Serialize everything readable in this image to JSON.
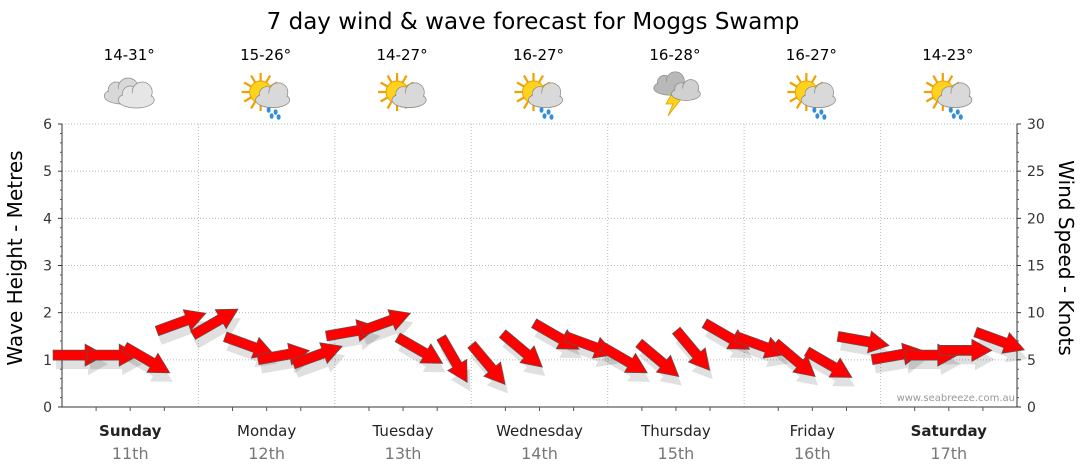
{
  "chart_data": {
    "type": "line",
    "title": "7 day wind & wave forecast for Moggs Swamp",
    "ylabel_left": "Wave Height - Metres",
    "ylabel_right": "Wind Speed - Knots",
    "ylim_left": [
      0,
      6
    ],
    "ylim_right": [
      0,
      30
    ],
    "left_ticks": [
      "0",
      "1",
      "2",
      "3",
      "4",
      "5",
      "6"
    ],
    "right_ticks": [
      "0",
      "5",
      "10",
      "15",
      "20",
      "25",
      "30"
    ],
    "grid": true,
    "days": [
      {
        "name": "Sunday",
        "date": "11th",
        "temp": "14-31°",
        "icon": "cloudy-icon",
        "bold": true
      },
      {
        "name": "Monday",
        "date": "12th",
        "temp": "15-26°",
        "icon": "sun-cloud-rain-icon",
        "bold": false
      },
      {
        "name": "Tuesday",
        "date": "13th",
        "temp": "14-27°",
        "icon": "sun-cloud-icon",
        "bold": false
      },
      {
        "name": "Wednesday",
        "date": "14th",
        "temp": "16-27°",
        "icon": "sun-cloud-rain-icon",
        "bold": false
      },
      {
        "name": "Thursday",
        "date": "15th",
        "temp": "16-28°",
        "icon": "storm-icon",
        "bold": false
      },
      {
        "name": "Friday",
        "date": "16th",
        "temp": "16-27°",
        "icon": "sun-cloud-rain-icon",
        "bold": false
      },
      {
        "name": "Saturday",
        "date": "17th",
        "temp": "14-23°",
        "icon": "sun-cloud-rain-icon",
        "bold": true
      }
    ],
    "series": [
      {
        "name": "Wind Speed",
        "units": "knots",
        "x_hours": [
          0,
          6,
          12,
          18,
          24,
          30,
          36,
          42,
          48,
          54,
          60,
          66,
          72,
          78,
          84,
          90,
          96,
          102,
          108,
          114,
          120,
          126,
          132,
          138,
          144,
          150,
          156,
          162
        ],
        "values": [
          5.5,
          5.5,
          5,
          9,
          9,
          6.5,
          5.5,
          5.5,
          8,
          9,
          6,
          5,
          4.5,
          6,
          7.5,
          6.5,
          5,
          5,
          6,
          7.5,
          6.5,
          5,
          4.5,
          7,
          5.5,
          5.5,
          6,
          7
        ],
        "direction_deg": [
          270,
          270,
          300,
          250,
          240,
          290,
          260,
          250,
          260,
          250,
          300,
          330,
          320,
          310,
          300,
          290,
          300,
          310,
          320,
          300,
          290,
          310,
          300,
          280,
          260,
          270,
          270,
          290
        ]
      }
    ],
    "credit": "www.seabreeze.com.au",
    "colors": {
      "arrow": "#ff0000",
      "arrow_stroke": "#555555",
      "grid": "#bbbbbb"
    }
  }
}
